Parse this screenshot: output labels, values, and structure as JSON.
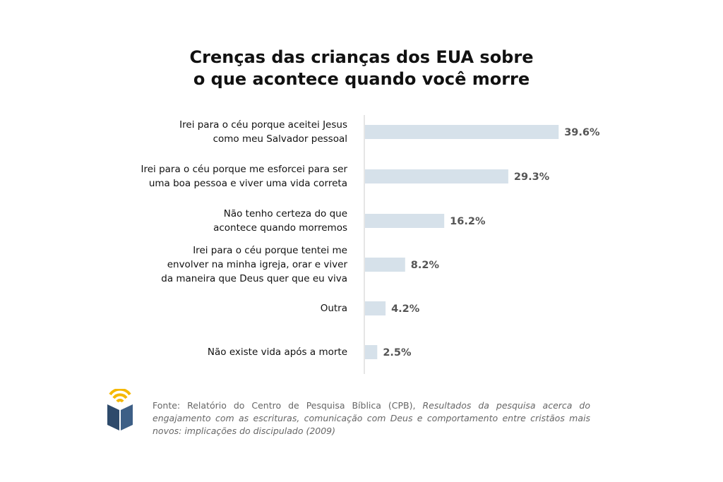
{
  "chart_data": {
    "type": "bar",
    "orientation": "horizontal",
    "title_lines": [
      "Crenças das crianças dos EUA sobre",
      "o que acontece quando você morre"
    ],
    "categories": [
      [
        "Irei para o céu porque aceitei Jesus",
        "como meu Salvador pessoal"
      ],
      [
        "Irei para o céu porque me esforcei para ser",
        "uma boa pessoa e viver uma vida correta"
      ],
      [
        "Não tenho certeza do que",
        "acontece quando morremos"
      ],
      [
        "Irei para o céu porque tentei me",
        "envolver na minha igreja, orar e viver",
        "da maneira que Deus quer que eu viva"
      ],
      [
        "Outra"
      ],
      [
        "Não existe vida após a morte"
      ]
    ],
    "values": [
      39.6,
      29.3,
      16.2,
      8.2,
      4.2,
      2.5
    ],
    "value_labels": [
      "39.6%",
      "29.3%",
      "16.2%",
      "8.2%",
      "4.2%",
      "2.5%"
    ],
    "xlim": [
      0,
      40
    ],
    "grid": false,
    "legend": "none",
    "bar_color": "#d6e1ea",
    "axis_color": "#dddddd"
  },
  "footer": {
    "source_prefix": "Fonte: Relatório do Centro de Pesquisa Bíblica (CPB), ",
    "source_title": "Resultados da pesquisa acerca do engajamento com as escrituras, comunicação com Deus e comportamento entre cristãos mais novos: implicações do discipulado (2009)",
    "logo_icon": "book-signal-icon",
    "logo_colors": {
      "book": "#2e4a6b",
      "signal": "#f5b800"
    }
  }
}
